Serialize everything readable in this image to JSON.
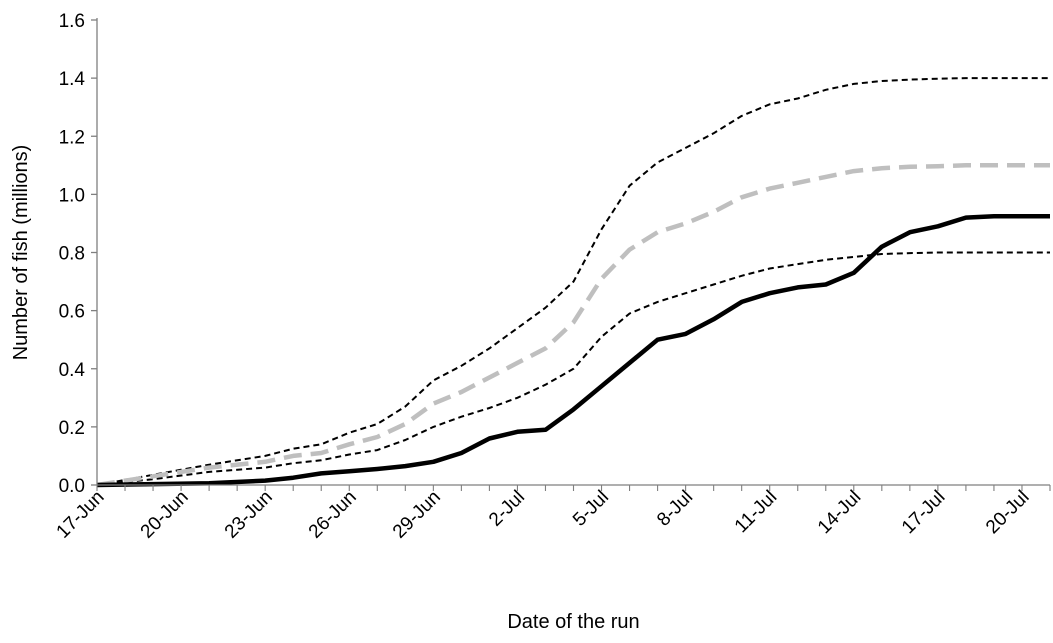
{
  "chart_data": {
    "type": "line",
    "title": "",
    "xlabel": "Date of the run",
    "ylabel": "Number of fish (millions)",
    "ylim": [
      0,
      1.6
    ],
    "yticks": [
      "0.0",
      "0.2",
      "0.4",
      "0.6",
      "0.8",
      "1.0",
      "1.2",
      "1.4",
      "1.6"
    ],
    "x_categories": [
      "17-Jun",
      "20-Jun",
      "23-Jun",
      "26-Jun",
      "29-Jun",
      "2-Jul",
      "5-Jul",
      "8-Jul",
      "11-Jul",
      "14-Jul",
      "17-Jul",
      "20-Jul"
    ],
    "grid": false,
    "legend": "none",
    "series": [
      {
        "style": "solid-black-thick",
        "color": "#000000",
        "points": [
          [
            "17-Jun",
            0.0
          ],
          [
            "19-Jun",
            0.003
          ],
          [
            "21-Jun",
            0.006
          ],
          [
            "23-Jun",
            0.015
          ],
          [
            "24-Jun",
            0.025
          ],
          [
            "25-Jun",
            0.04
          ],
          [
            "26-Jun",
            0.047
          ],
          [
            "27-Jun",
            0.055
          ],
          [
            "28-Jun",
            0.065
          ],
          [
            "29-Jun",
            0.08
          ],
          [
            "30-Jun",
            0.11
          ],
          [
            "1-Jul",
            0.16
          ],
          [
            "2-Jul",
            0.183
          ],
          [
            "3-Jul",
            0.19
          ],
          [
            "4-Jul",
            0.26
          ],
          [
            "5-Jul",
            0.34
          ],
          [
            "6-Jul",
            0.42
          ],
          [
            "7-Jul",
            0.5
          ],
          [
            "8-Jul",
            0.52
          ],
          [
            "9-Jul",
            0.57
          ],
          [
            "10-Jul",
            0.63
          ],
          [
            "11-Jul",
            0.66
          ],
          [
            "12-Jul",
            0.68
          ],
          [
            "13-Jul",
            0.69
          ],
          [
            "14-Jul",
            0.73
          ],
          [
            "15-Jul",
            0.82
          ],
          [
            "16-Jul",
            0.87
          ],
          [
            "17-Jul",
            0.89
          ],
          [
            "18-Jul",
            0.92
          ],
          [
            "19-Jul",
            0.925
          ],
          [
            "20-Jul",
            0.925
          ],
          [
            "21-Jul",
            0.925
          ]
        ]
      },
      {
        "style": "dashed-gray-thick",
        "color": "#bfbfbf",
        "points": [
          [
            "17-Jun",
            0.0
          ],
          [
            "19-Jun",
            0.03
          ],
          [
            "21-Jun",
            0.06
          ],
          [
            "23-Jun",
            0.08
          ],
          [
            "24-Jun",
            0.1
          ],
          [
            "25-Jun",
            0.11
          ],
          [
            "26-Jun",
            0.14
          ],
          [
            "27-Jun",
            0.165
          ],
          [
            "28-Jun",
            0.21
          ],
          [
            "29-Jun",
            0.28
          ],
          [
            "30-Jun",
            0.32
          ],
          [
            "1-Jul",
            0.37
          ],
          [
            "2-Jul",
            0.42
          ],
          [
            "3-Jul",
            0.47
          ],
          [
            "4-Jul",
            0.56
          ],
          [
            "5-Jul",
            0.71
          ],
          [
            "6-Jul",
            0.81
          ],
          [
            "7-Jul",
            0.87
          ],
          [
            "8-Jul",
            0.9
          ],
          [
            "9-Jul",
            0.94
          ],
          [
            "10-Jul",
            0.99
          ],
          [
            "11-Jul",
            1.02
          ],
          [
            "12-Jul",
            1.04
          ],
          [
            "13-Jul",
            1.06
          ],
          [
            "14-Jul",
            1.08
          ],
          [
            "15-Jul",
            1.09
          ],
          [
            "16-Jul",
            1.095
          ],
          [
            "17-Jul",
            1.097
          ],
          [
            "18-Jul",
            1.1
          ],
          [
            "19-Jul",
            1.1
          ],
          [
            "20-Jul",
            1.1
          ],
          [
            "21-Jul",
            1.1
          ]
        ]
      },
      {
        "style": "dashed-black-thin-upper",
        "color": "#000000",
        "points": [
          [
            "17-Jun",
            0.0
          ],
          [
            "19-Jun",
            0.035
          ],
          [
            "21-Jun",
            0.07
          ],
          [
            "23-Jun",
            0.1
          ],
          [
            "24-Jun",
            0.125
          ],
          [
            "25-Jun",
            0.14
          ],
          [
            "26-Jun",
            0.18
          ],
          [
            "27-Jun",
            0.21
          ],
          [
            "28-Jun",
            0.27
          ],
          [
            "29-Jun",
            0.36
          ],
          [
            "30-Jun",
            0.41
          ],
          [
            "1-Jul",
            0.47
          ],
          [
            "2-Jul",
            0.54
          ],
          [
            "3-Jul",
            0.61
          ],
          [
            "4-Jul",
            0.7
          ],
          [
            "5-Jul",
            0.88
          ],
          [
            "6-Jul",
            1.03
          ],
          [
            "7-Jul",
            1.11
          ],
          [
            "8-Jul",
            1.16
          ],
          [
            "9-Jul",
            1.21
          ],
          [
            "10-Jul",
            1.27
          ],
          [
            "11-Jul",
            1.31
          ],
          [
            "12-Jul",
            1.33
          ],
          [
            "13-Jul",
            1.36
          ],
          [
            "14-Jul",
            1.38
          ],
          [
            "15-Jul",
            1.39
          ],
          [
            "16-Jul",
            1.395
          ],
          [
            "17-Jul",
            1.398
          ],
          [
            "18-Jul",
            1.4
          ],
          [
            "19-Jul",
            1.4
          ],
          [
            "20-Jul",
            1.4
          ],
          [
            "21-Jul",
            1.4
          ]
        ]
      },
      {
        "style": "dashed-black-thin-lower",
        "color": "#000000",
        "points": [
          [
            "17-Jun",
            0.0
          ],
          [
            "19-Jun",
            0.02
          ],
          [
            "21-Jun",
            0.045
          ],
          [
            "23-Jun",
            0.06
          ],
          [
            "24-Jun",
            0.075
          ],
          [
            "25-Jun",
            0.085
          ],
          [
            "26-Jun",
            0.105
          ],
          [
            "27-Jun",
            0.12
          ],
          [
            "28-Jun",
            0.155
          ],
          [
            "29-Jun",
            0.2
          ],
          [
            "30-Jun",
            0.235
          ],
          [
            "1-Jul",
            0.265
          ],
          [
            "2-Jul",
            0.3
          ],
          [
            "3-Jul",
            0.345
          ],
          [
            "4-Jul",
            0.4
          ],
          [
            "5-Jul",
            0.51
          ],
          [
            "6-Jul",
            0.59
          ],
          [
            "7-Jul",
            0.63
          ],
          [
            "8-Jul",
            0.66
          ],
          [
            "9-Jul",
            0.69
          ],
          [
            "10-Jul",
            0.72
          ],
          [
            "11-Jul",
            0.745
          ],
          [
            "12-Jul",
            0.76
          ],
          [
            "13-Jul",
            0.775
          ],
          [
            "14-Jul",
            0.785
          ],
          [
            "15-Jul",
            0.795
          ],
          [
            "16-Jul",
            0.798
          ],
          [
            "17-Jul",
            0.8
          ],
          [
            "18-Jul",
            0.8
          ],
          [
            "19-Jul",
            0.8
          ],
          [
            "20-Jul",
            0.8
          ],
          [
            "21-Jul",
            0.8
          ]
        ]
      }
    ]
  }
}
